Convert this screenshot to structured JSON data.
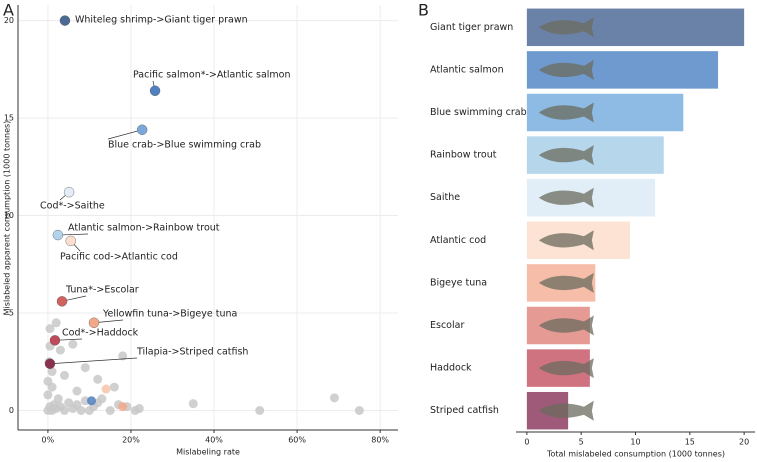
{
  "chart_data": [
    {
      "type": "scatter",
      "panel": "A",
      "xlabel": "Mislabeling rate",
      "ylabel": "Mislabeled apparent consumption (1000 tonnes)",
      "xlim": [
        -7.2,
        84.3
      ],
      "ylim": [
        -1,
        20.8
      ],
      "xticks": [
        {
          "value": 0,
          "label": "0%"
        },
        {
          "value": 20,
          "label": "20%"
        },
        {
          "value": 40,
          "label": "40%"
        },
        {
          "value": 60,
          "label": "60%"
        },
        {
          "value": 80,
          "label": "80%"
        }
      ],
      "yticks": [
        0,
        5,
        10,
        15,
        20
      ],
      "grid": true,
      "points": [
        {
          "label": "Whiteleg shrimp->Giant tiger prawn",
          "x": 4.1,
          "y": 20,
          "color": "#4c6a93"
        },
        {
          "label": "Pacific salmon*->Atlantic salmon",
          "x": 25.8,
          "y": 16.4,
          "color": "#4f80c0"
        },
        {
          "label": "Blue crab->Blue swimming crab",
          "x": 22.7,
          "y": 14.4,
          "color": "#7aa8da"
        },
        {
          "label": "Cod*->Saithe",
          "x": 5.1,
          "y": 11.2,
          "color": "#e2edf8"
        },
        {
          "label": "Atlantic salmon->Rainbow trout",
          "x": 2.4,
          "y": 9.0,
          "color": "#b4d2ea"
        },
        {
          "label": "Pacific cod->Atlantic cod",
          "x": 5.5,
          "y": 8.7,
          "color": "#fbe0d0"
        },
        {
          "label": "Tuna*->Escolar",
          "x": 3.4,
          "y": 5.6,
          "color": "#d0625f"
        },
        {
          "label": "Yellowfin tuna->Bigeye tuna",
          "x": 11.1,
          "y": 4.5,
          "color": "#f2a98a"
        },
        {
          "label": "Cod*->Haddock",
          "x": 1.7,
          "y": 3.6,
          "color": "#c04a5a"
        },
        {
          "label": "Tilapia->Striped catfish",
          "x": 0.5,
          "y": 2.4,
          "color": "#8a3050"
        }
      ],
      "other": {
        "x": [
          0,
          0.5,
          1,
          1.5,
          2,
          0,
          0.3,
          0.5,
          1,
          0,
          2.5,
          3,
          4,
          5,
          6,
          7,
          8,
          9,
          10,
          11,
          12,
          13,
          15,
          16,
          17,
          19,
          21,
          22,
          35,
          51,
          69,
          75,
          6,
          9,
          18,
          12,
          4,
          7,
          1,
          2,
          0.5,
          3,
          18,
          10.5,
          14
        ],
        "y": [
          0,
          0.2,
          0,
          0.3,
          0.1,
          1.5,
          2.5,
          3.3,
          1.2,
          0.8,
          0.6,
          0.2,
          0,
          0.4,
          0.1,
          0.3,
          0,
          0.5,
          0,
          0.2,
          0.4,
          0.6,
          0,
          1.2,
          0.3,
          0.2,
          0,
          0.1,
          0.35,
          0,
          0.65,
          0,
          3.4,
          2.2,
          2.8,
          1.6,
          1.8,
          1.0,
          2.0,
          4.5,
          4.2,
          3.1,
          0.2,
          0.5,
          1.1
        ],
        "colors": [
          "#c8c8c8",
          "#c8c8c8",
          "#c8c8c8",
          "#c8c8c8",
          "#c8c8c8",
          "#c8c8c8",
          "#c8c8c8",
          "#c8c8c8",
          "#c8c8c8",
          "#c8c8c8",
          "#c8c8c8",
          "#c8c8c8",
          "#c8c8c8",
          "#c8c8c8",
          "#c8c8c8",
          "#c8c8c8",
          "#c8c8c8",
          "#c8c8c8",
          "#c8c8c8",
          "#c8c8c8",
          "#c8c8c8",
          "#c8c8c8",
          "#c8c8c8",
          "#c8c8c8",
          "#c8c8c8",
          "#c8c8c8",
          "#c8c8c8",
          "#c8c8c8",
          "#c8c8c8",
          "#c8c8c8",
          "#c8c8c8",
          "#c8c8c8",
          "#c8c8c8",
          "#c8c8c8",
          "#c8c8c8",
          "#c8c8c8",
          "#c8c8c8",
          "#c8c8c8",
          "#c8c8c8",
          "#c8c8c8",
          "#c8c8c8",
          "#c8c8c8",
          "#f2a98a",
          "#4f80c0",
          "#f7c4a8"
        ]
      }
    },
    {
      "type": "hbar",
      "panel": "B",
      "xlabel": "Total mislabeled consumption (1000 tonnes)",
      "xlim": [
        -1,
        21
      ],
      "xticks": [
        0,
        5,
        10,
        15,
        20
      ],
      "categories": [
        "Giant tiger prawn",
        "Atlantic salmon",
        "Blue swimming crab",
        "Rainbow trout",
        "Saithe",
        "Atlantic cod",
        "Bigeye tuna",
        "Escolar",
        "Haddock",
        "Striped catfish"
      ],
      "values": [
        20,
        17.6,
        14.4,
        12.6,
        11.8,
        9.5,
        6.3,
        5.8,
        5.8,
        3.8
      ],
      "colors": [
        "#6b82a8",
        "#6f9acf",
        "#8dbbe3",
        "#b6d6ec",
        "#e1edf7",
        "#fde3d4",
        "#f6bea8",
        "#e59a94",
        "#d07380",
        "#9e5a78"
      ]
    }
  ]
}
